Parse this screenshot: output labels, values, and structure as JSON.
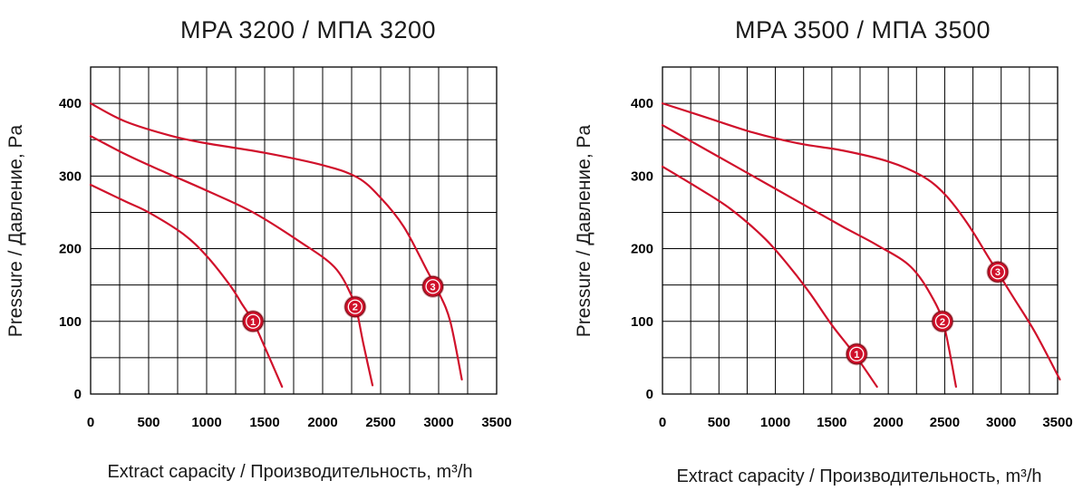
{
  "colors": {
    "curve": "#d0112b",
    "marker": "#d0112b",
    "marker_ring": "#ffffff",
    "grid": "#000000"
  },
  "chart_data": [
    {
      "type": "line",
      "title": "MPA 3200 / МПА 3200",
      "xlabel": "Extract capacity / Производительность, m³/h",
      "ylabel": "Pressure / Давление, Pa",
      "xlim": [
        0,
        3500
      ],
      "ylim": [
        0,
        450
      ],
      "x_ticks": [
        "0",
        "500",
        "1000",
        "1500",
        "2000",
        "2500",
        "3000",
        "3500"
      ],
      "y_ticks": [
        "0",
        "100",
        "200",
        "300",
        "400"
      ],
      "grid": true,
      "series": [
        {
          "name": "1",
          "marker": {
            "x": 1400,
            "y": 100
          },
          "x": [
            0,
            300,
            500,
            800,
            1000,
            1200,
            1300,
            1400,
            1500,
            1650
          ],
          "y": [
            288,
            265,
            250,
            220,
            190,
            150,
            125,
            100,
            65,
            10
          ]
        },
        {
          "name": "2",
          "marker": {
            "x": 2280,
            "y": 120
          },
          "x": [
            0,
            300,
            600,
            1000,
            1400,
            1800,
            2100,
            2250,
            2300,
            2350,
            2430
          ],
          "y": [
            355,
            330,
            308,
            280,
            250,
            210,
            175,
            135,
            110,
            70,
            12
          ]
        },
        {
          "name": "3",
          "marker": {
            "x": 2950,
            "y": 148
          },
          "x": [
            0,
            300,
            700,
            1000,
            1500,
            2000,
            2300,
            2500,
            2700,
            2900,
            3000,
            3100,
            3200
          ],
          "y": [
            400,
            375,
            355,
            345,
            332,
            315,
            298,
            270,
            230,
            170,
            140,
            100,
            20
          ]
        }
      ]
    },
    {
      "type": "line",
      "title": "MPA 3500 / МПА 3500",
      "xlabel": "Extract capacity / Производительность, m³/h",
      "ylabel": "Pressure / Давление, Pa",
      "xlim": [
        0,
        3500
      ],
      "ylim": [
        0,
        450
      ],
      "x_ticks": [
        "0",
        "500",
        "1000",
        "1500",
        "2000",
        "2500",
        "3000",
        "3500"
      ],
      "y_ticks": [
        "0",
        "100",
        "200",
        "300",
        "400"
      ],
      "grid": true,
      "series": [
        {
          "name": "1",
          "marker": {
            "x": 1720,
            "y": 55
          },
          "x": [
            0,
            300,
            600,
            900,
            1100,
            1300,
            1500,
            1700,
            1900
          ],
          "y": [
            313,
            285,
            255,
            215,
            180,
            140,
            95,
            55,
            10
          ]
        },
        {
          "name": "2",
          "marker": {
            "x": 2480,
            "y": 100
          },
          "x": [
            0,
            400,
            800,
            1200,
            1600,
            1900,
            2200,
            2400,
            2500,
            2600
          ],
          "y": [
            370,
            335,
            300,
            265,
            230,
            205,
            175,
            130,
            90,
            10
          ]
        },
        {
          "name": "3",
          "marker": {
            "x": 2970,
            "y": 168
          },
          "x": [
            0,
            400,
            800,
            1200,
            1600,
            2000,
            2300,
            2500,
            2700,
            2900,
            3100,
            3300,
            3520
          ],
          "y": [
            400,
            380,
            360,
            345,
            335,
            320,
            300,
            275,
            235,
            185,
            135,
            85,
            20
          ]
        }
      ]
    }
  ]
}
